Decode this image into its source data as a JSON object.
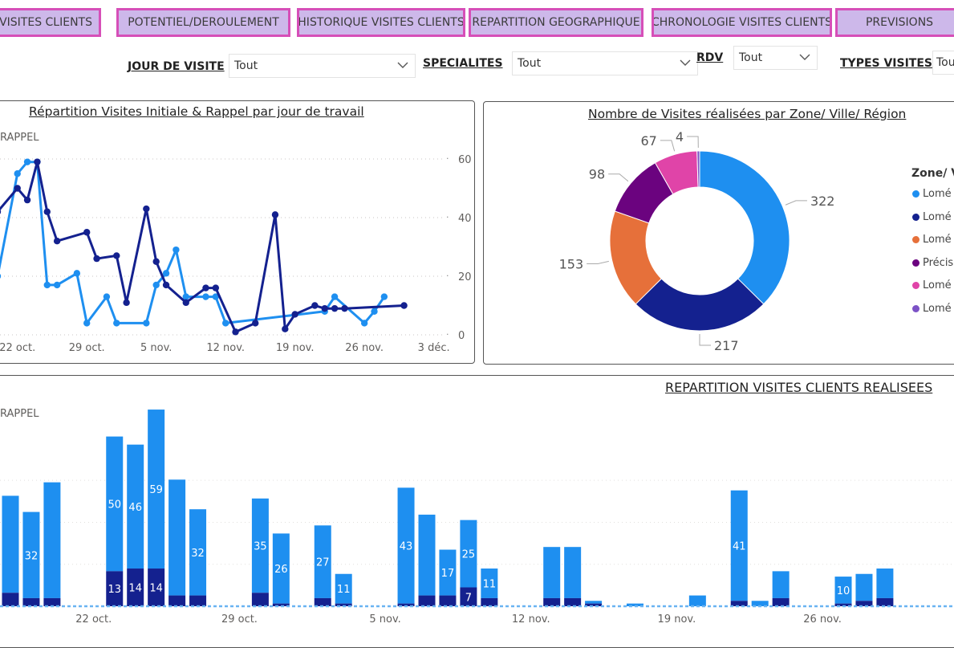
{
  "tabs": [
    {
      "label": "OU VISITES CLIENTS"
    },
    {
      "label": "POTENTIEL/DEROULEMENT"
    },
    {
      "label": "HISTORIQUE VISITES CLIENTS"
    },
    {
      "label": "REPARTITION GEOGRAPHIQUE"
    },
    {
      "label": "CHRONOLOGIE VISITES CLIENTS"
    },
    {
      "label": "PREVISIONS"
    }
  ],
  "filters": {
    "jour": {
      "label": "JOUR DE VISITE",
      "value": "Tout"
    },
    "specialites": {
      "label": "SPECIALITES",
      "value": "Tout"
    },
    "rdv": {
      "label": "RDV",
      "value": "Tout"
    },
    "types": {
      "label": "TYPES VISITES",
      "value": "Tout"
    }
  },
  "colors": {
    "initiale": "#1e8ff0",
    "rappel": "#14218f",
    "tab_bg": "#cdb8ea",
    "tab_border": "#d64fb8"
  },
  "chart_data": [
    {
      "type": "line",
      "title": "Répartition Visites Initiale & Rappel par jour de travail",
      "legend_fragment": "RAPPEL",
      "x_ticks": [
        "22 oct.",
        "29 oct.",
        "5 nov.",
        "12 nov.",
        "19 nov.",
        "26 nov.",
        "3 déc."
      ],
      "y_ticks": [
        "0",
        "20",
        "40",
        "60"
      ],
      "ylim": [
        0,
        60
      ],
      "xlim": [
        "2023-10-20",
        "2023-12-04"
      ],
      "series": [
        {
          "color": "#1e8ff0",
          "points": [
            [
              "2023-10-20",
              20
            ],
            [
              "2023-10-22",
              55
            ],
            [
              "2023-10-23",
              59
            ],
            [
              "2023-10-24",
              59
            ],
            [
              "2023-10-25",
              17
            ],
            [
              "2023-10-26",
              17
            ],
            [
              "2023-10-28",
              21
            ],
            [
              "2023-10-29",
              4
            ],
            [
              "2023-10-31",
              13
            ],
            [
              "2023-11-01",
              4
            ],
            [
              "2023-11-04",
              4
            ],
            [
              "2023-11-05",
              17
            ],
            [
              "2023-11-06",
              21
            ],
            [
              "2023-11-07",
              29
            ],
            [
              "2023-11-08",
              13
            ],
            [
              "2023-11-10",
              13
            ],
            [
              "2023-11-11",
              13
            ],
            [
              "2023-11-12",
              4
            ],
            [
              "2023-11-22",
              8
            ],
            [
              "2023-11-23",
              13
            ],
            [
              "2023-11-26",
              4
            ],
            [
              "2023-11-27",
              8
            ],
            [
              "2023-11-28",
              13
            ]
          ]
        },
        {
          "color": "#14218f",
          "points": [
            [
              "2023-10-20",
              42
            ],
            [
              "2023-10-22",
              50
            ],
            [
              "2023-10-23",
              46
            ],
            [
              "2023-10-24",
              59
            ],
            [
              "2023-10-25",
              42
            ],
            [
              "2023-10-26",
              32
            ],
            [
              "2023-10-29",
              35
            ],
            [
              "2023-10-30",
              26
            ],
            [
              "2023-11-01",
              27
            ],
            [
              "2023-11-02",
              11
            ],
            [
              "2023-11-04",
              43
            ],
            [
              "2023-11-05",
              25
            ],
            [
              "2023-11-06",
              17
            ],
            [
              "2023-11-08",
              11
            ],
            [
              "2023-11-10",
              16
            ],
            [
              "2023-11-11",
              16
            ],
            [
              "2023-11-13",
              1
            ],
            [
              "2023-11-15",
              4
            ],
            [
              "2023-11-17",
              41
            ],
            [
              "2023-11-18",
              2
            ],
            [
              "2023-11-19",
              7
            ],
            [
              "2023-11-21",
              10
            ],
            [
              "2023-11-22",
              9
            ],
            [
              "2023-11-23",
              9
            ],
            [
              "2023-11-24",
              9
            ],
            [
              "2023-11-30",
              10
            ]
          ]
        }
      ]
    },
    {
      "type": "pie",
      "title": "Nombre de Visites réalisées par Zone/ Ville/ Région",
      "legend_title": "Zone/ V",
      "values": [
        322,
        217,
        153,
        98,
        67,
        4
      ],
      "labels": [
        "Lomé",
        "Lomé",
        "Lomé",
        "Précis",
        "Lomé",
        "Lomé"
      ],
      "colors": [
        "#1e8ff0",
        "#14218f",
        "#e6703a",
        "#6b037f",
        "#e044a8",
        "#7c52c6"
      ]
    },
    {
      "type": "bar",
      "title": "REPARTITION VISITES CLIENTS REALISEES",
      "legend_fragment": "RAPPEL",
      "x_ticks": [
        "22 oct.",
        "29 oct.",
        "5 nov.",
        "12 nov.",
        "19 nov.",
        "26 nov."
      ],
      "xlim": [
        "2023-10-18",
        "2023-11-30"
      ],
      "ylim": [
        0,
        76
      ],
      "bars": [
        {
          "date": "2023-10-18",
          "initiale": 36,
          "rappel": 5
        },
        {
          "date": "2023-10-19",
          "initiale": 32,
          "rappel": 3
        },
        {
          "date": "2023-10-20",
          "initiale": 43,
          "rappel": 3
        },
        {
          "date": "2023-10-23",
          "initiale": 50,
          "rappel": 13
        },
        {
          "date": "2023-10-24",
          "initiale": 46,
          "rappel": 14
        },
        {
          "date": "2023-10-25",
          "initiale": 59,
          "rappel": 14
        },
        {
          "date": "2023-10-26",
          "initiale": 43,
          "rappel": 4
        },
        {
          "date": "2023-10-27",
          "initiale": 32,
          "rappel": 4
        },
        {
          "date": "2023-10-30",
          "initiale": 35,
          "rappel": 5
        },
        {
          "date": "2023-10-31",
          "initiale": 26,
          "rappel": 1
        },
        {
          "date": "2023-11-02",
          "initiale": 27,
          "rappel": 3
        },
        {
          "date": "2023-11-03",
          "initiale": 11,
          "rappel": 1
        },
        {
          "date": "2023-11-06",
          "initiale": 43,
          "rappel": 1
        },
        {
          "date": "2023-11-07",
          "initiale": 30,
          "rappel": 4
        },
        {
          "date": "2023-11-08",
          "initiale": 17,
          "rappel": 4
        },
        {
          "date": "2023-11-09",
          "initiale": 25,
          "rappel": 7
        },
        {
          "date": "2023-11-10",
          "initiale": 11,
          "rappel": 3
        },
        {
          "date": "2023-11-13",
          "initiale": 19,
          "rappel": 3
        },
        {
          "date": "2023-11-14",
          "initiale": 19,
          "rappel": 3
        },
        {
          "date": "2023-11-15",
          "initiale": 1,
          "rappel": 1
        },
        {
          "date": "2023-11-17",
          "initiale": 1,
          "rappel": 0
        },
        {
          "date": "2023-11-20",
          "initiale": 4,
          "rappel": 0
        },
        {
          "date": "2023-11-22",
          "initiale": 41,
          "rappel": 2
        },
        {
          "date": "2023-11-23",
          "initiale": 2,
          "rappel": 0
        },
        {
          "date": "2023-11-24",
          "initiale": 10,
          "rappel": 3
        },
        {
          "date": "2023-11-27",
          "initiale": 10,
          "rappel": 1
        },
        {
          "date": "2023-11-28",
          "initiale": 10,
          "rappel": 2
        },
        {
          "date": "2023-11-29",
          "initiale": 11,
          "rappel": 3
        }
      ],
      "initiale_labels": {
        "2023-10-19": "32",
        "2023-10-23": "50",
        "2023-10-24": "46",
        "2023-10-25": "59",
        "2023-10-27": "32",
        "2023-10-30": "35",
        "2023-10-31": "26",
        "2023-11-02": "27",
        "2023-11-03": "11",
        "2023-11-06": "43",
        "2023-11-08": "17",
        "2023-11-09": "25",
        "2023-11-10": "11",
        "2023-11-22": "41",
        "2023-11-27": "10"
      },
      "rappel_labels": {
        "2023-10-23": "13",
        "2023-10-24": "14",
        "2023-10-25": "14",
        "2023-11-09": "7"
      }
    }
  ]
}
